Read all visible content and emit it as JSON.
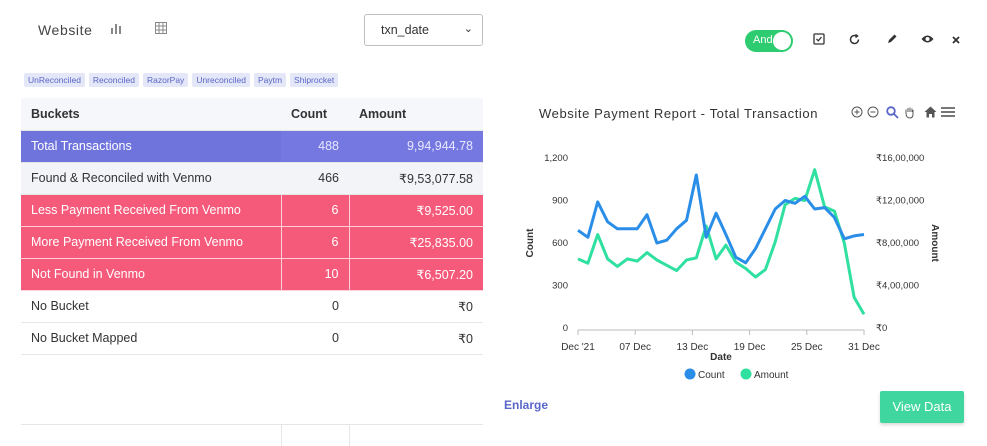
{
  "header": {
    "title": "Website",
    "select_value": "txn_date"
  },
  "toolbar": {
    "toggle_label": "And"
  },
  "tags": [
    "UnReconciled",
    "Reconciled",
    "RazorPay",
    "Unreconciled",
    "Paytm",
    "Shiprocket"
  ],
  "table": {
    "headers": [
      "Buckets",
      "Count",
      "Amount"
    ],
    "rows": [
      {
        "bucket": "Total Transactions",
        "count": "488",
        "amount": "9,94,944.78"
      },
      {
        "bucket": "Found & Reconciled with Venmo",
        "count": "466",
        "amount": "₹9,53,077.58"
      },
      {
        "bucket": "Less Payment Received From Venmo",
        "count": "6",
        "amount": "₹9,525.00"
      },
      {
        "bucket": "More Payment Received From Venmo",
        "count": "6",
        "amount": "₹25,835.00"
      },
      {
        "bucket": "Not Found in Venmo",
        "count": "10",
        "amount": "₹6,507.20"
      },
      {
        "bucket": "No Bucket",
        "count": "0",
        "amount": "₹0"
      },
      {
        "bucket": "No Bucket Mapped",
        "count": "0",
        "amount": "₹0"
      }
    ]
  },
  "colors": {
    "count": "#2a8ee8",
    "amount": "#2fe0a0",
    "total_row": "#6f74dd",
    "red_row": "#f55a7a",
    "button": "#3fd6a0"
  },
  "chart_data": {
    "type": "line",
    "title": "Website Payment Report - Total Transaction",
    "xlabel": "Date",
    "ylabel_left": "Count",
    "ylabel_right": "Amount",
    "x_ticks": [
      "Dec '21",
      "07 Dec",
      "13 Dec",
      "19 Dec",
      "25 Dec",
      "31 Dec"
    ],
    "y_left_ticks": [
      "0",
      "300",
      "600",
      "900",
      "1,200"
    ],
    "y_right_ticks": [
      "₹0",
      "₹4,00,000",
      "₹8,00,000",
      "₹12,00,000",
      "₹16,00,000"
    ],
    "ylim_left": [
      0,
      1200
    ],
    "ylim_right": [
      0,
      1600000
    ],
    "legend_position": "bottom",
    "series": [
      {
        "name": "Count",
        "axis": "left",
        "values": [
          690,
          640,
          890,
          750,
          700,
          700,
          700,
          800,
          600,
          620,
          700,
          760,
          1080,
          640,
          810,
          660,
          500,
          460,
          560,
          700,
          840,
          900,
          880,
          930,
          840,
          850,
          780,
          630,
          650,
          660
        ]
      },
      {
        "name": "Amount",
        "axis": "right",
        "values": [
          650000,
          610000,
          880000,
          650000,
          580000,
          650000,
          630000,
          710000,
          640000,
          590000,
          540000,
          640000,
          660000,
          960000,
          650000,
          780000,
          620000,
          560000,
          480000,
          550000,
          810000,
          1160000,
          1220000,
          1200000,
          1490000,
          1140000,
          1100000,
          800000,
          290000,
          130000
        ]
      }
    ]
  },
  "footer": {
    "enlarge_label": "Enlarge",
    "view_label": "View Data"
  }
}
